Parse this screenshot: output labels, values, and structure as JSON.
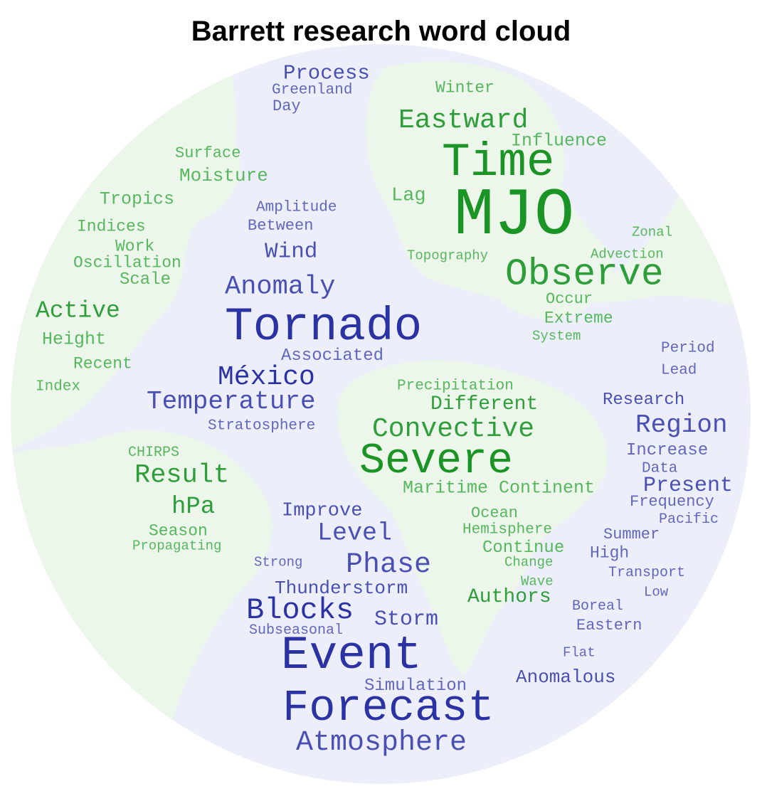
{
  "title": "Barrett research word cloud",
  "colors": {
    "ocean": "#eceff9",
    "land": "#edf6ea",
    "green_word": "#2e9e3a",
    "blue_word": "#2b32a3"
  },
  "words": {
    "process": "Process",
    "greenland": "Greenland",
    "day": "Day",
    "winter": "Winter",
    "eastward": "Eastward",
    "influence": "Influence",
    "surface": "Surface",
    "moisture": "Moisture",
    "time": "Time",
    "lag": "Lag",
    "tropics": "Tropics",
    "amplitude": "Amplitude",
    "mjo": "MJO",
    "indices": "Indices",
    "between": "Between",
    "zonal": "Zonal",
    "work": "Work",
    "oscillation": "Oscillation",
    "wind": "Wind",
    "topography": "Topography",
    "advection": "Advection",
    "scale": "Scale",
    "observe": "Observe",
    "anomaly": "Anomaly",
    "occur": "Occur",
    "active": "Active",
    "extreme": "Extreme",
    "tornado": "Tornado",
    "height": "Height",
    "system": "System",
    "associated": "Associated",
    "period": "Period",
    "recent": "Recent",
    "mexico": "México",
    "lead": "Lead",
    "index": "Index",
    "precipitation": "Precipitation",
    "temperature": "Temperature",
    "different": "Different",
    "research": "Research",
    "stratosphere": "Stratosphere",
    "convective": "Convective",
    "region": "Region",
    "chirps": "CHIRPS",
    "increase": "Increase",
    "severe": "Severe",
    "result": "Result",
    "data": "Data",
    "maritime_continent": "Maritime Continent",
    "present": "Present",
    "hpa": "hPa",
    "improve": "Improve",
    "frequency": "Frequency",
    "ocean": "Ocean",
    "pacific": "Pacific",
    "season": "Season",
    "level": "Level",
    "hemisphere": "Hemisphere",
    "summer": "Summer",
    "propagating": "Propagating",
    "continue": "Continue",
    "high": "High",
    "strong": "Strong",
    "phase": "Phase",
    "change": "Change",
    "transport": "Transport",
    "wave": "Wave",
    "thunderstorm": "Thunderstorm",
    "low": "Low",
    "authors": "Authors",
    "blocks": "Blocks",
    "boreal": "Boreal",
    "storm": "Storm",
    "subseasonal": "Subseasonal",
    "eastern": "Eastern",
    "event": "Event",
    "flat": "Flat",
    "anomalous": "Anomalous",
    "simulation": "Simulation",
    "forecast": "Forecast",
    "atmosphere": "Atmosphere"
  }
}
